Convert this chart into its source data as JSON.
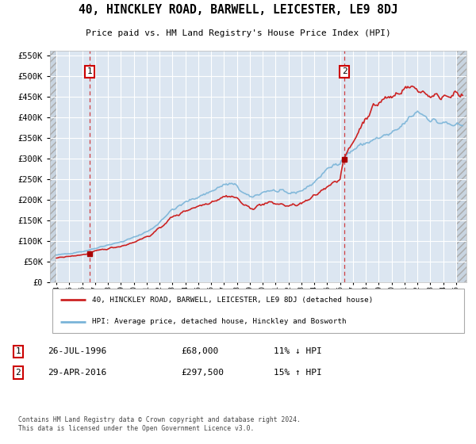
{
  "title": "40, HINCKLEY ROAD, BARWELL, LEICESTER, LE9 8DJ",
  "subtitle": "Price paid vs. HM Land Registry's House Price Index (HPI)",
  "legend_line1": "40, HINCKLEY ROAD, BARWELL, LEICESTER, LE9 8DJ (detached house)",
  "legend_line2": "HPI: Average price, detached house, Hinckley and Bosworth",
  "footnote": "Contains HM Land Registry data © Crown copyright and database right 2024.\nThis data is licensed under the Open Government Licence v3.0.",
  "marker1_date": "26-JUL-1996",
  "marker1_price": "£68,000",
  "marker1_hpi": "11% ↓ HPI",
  "marker2_date": "29-APR-2016",
  "marker2_price": "£297,500",
  "marker2_hpi": "15% ↑ HPI",
  "sale1_year": 1996.58,
  "sale1_value": 68000,
  "sale2_year": 2016.33,
  "sale2_value": 297500,
  "ylim": [
    0,
    560000
  ],
  "xlim_left": 1993.5,
  "xlim_right": 2025.8,
  "bg_color": "#dce6f1",
  "grid_color": "#ffffff",
  "hpi_line_color": "#7ab4d8",
  "price_line_color": "#cc2222",
  "sale_dot_color": "#aa0000",
  "marker_box_color": "#cc0000",
  "dashed_line_color": "#cc2222"
}
